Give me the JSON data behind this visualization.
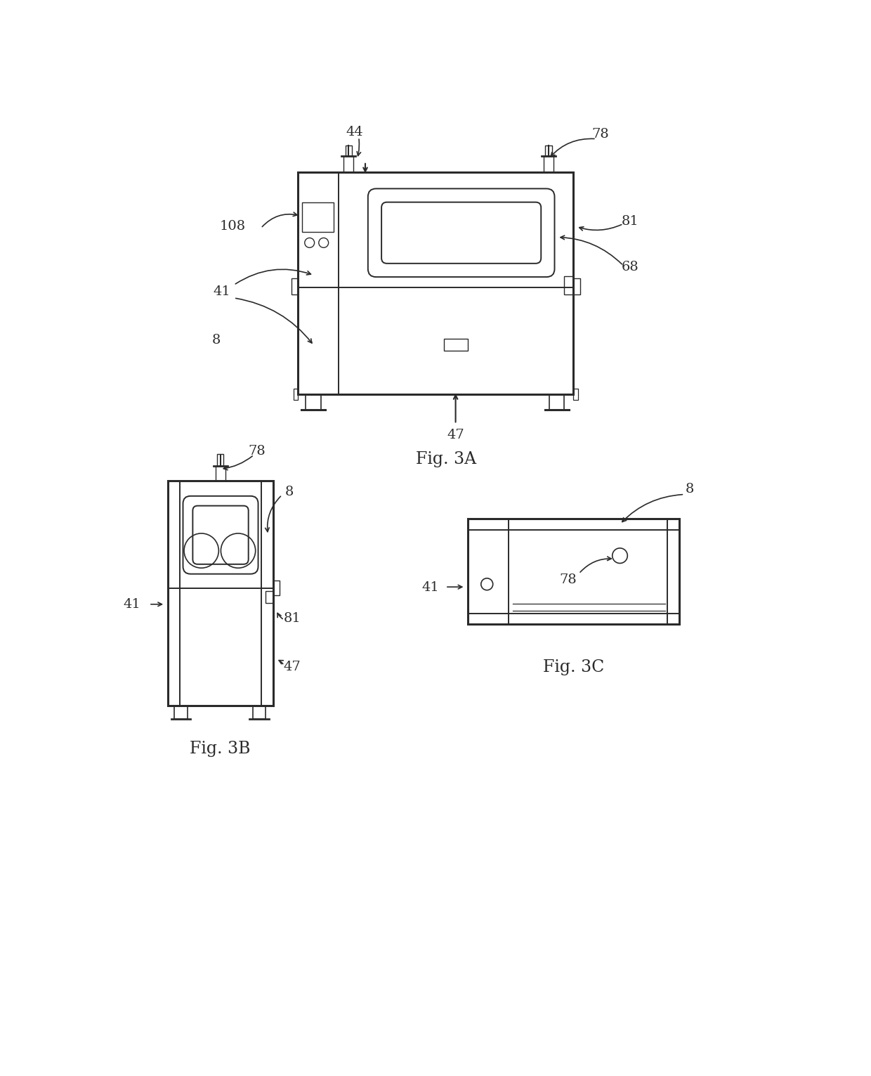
{
  "fig_3a_caption": "Fig. 3A",
  "fig_3b_caption": "Fig. 3B",
  "fig_3c_caption": "Fig. 3C",
  "bg_color": "#ffffff",
  "line_color": "#2a2a2a",
  "line_width": 1.4,
  "thick_line": 2.2
}
